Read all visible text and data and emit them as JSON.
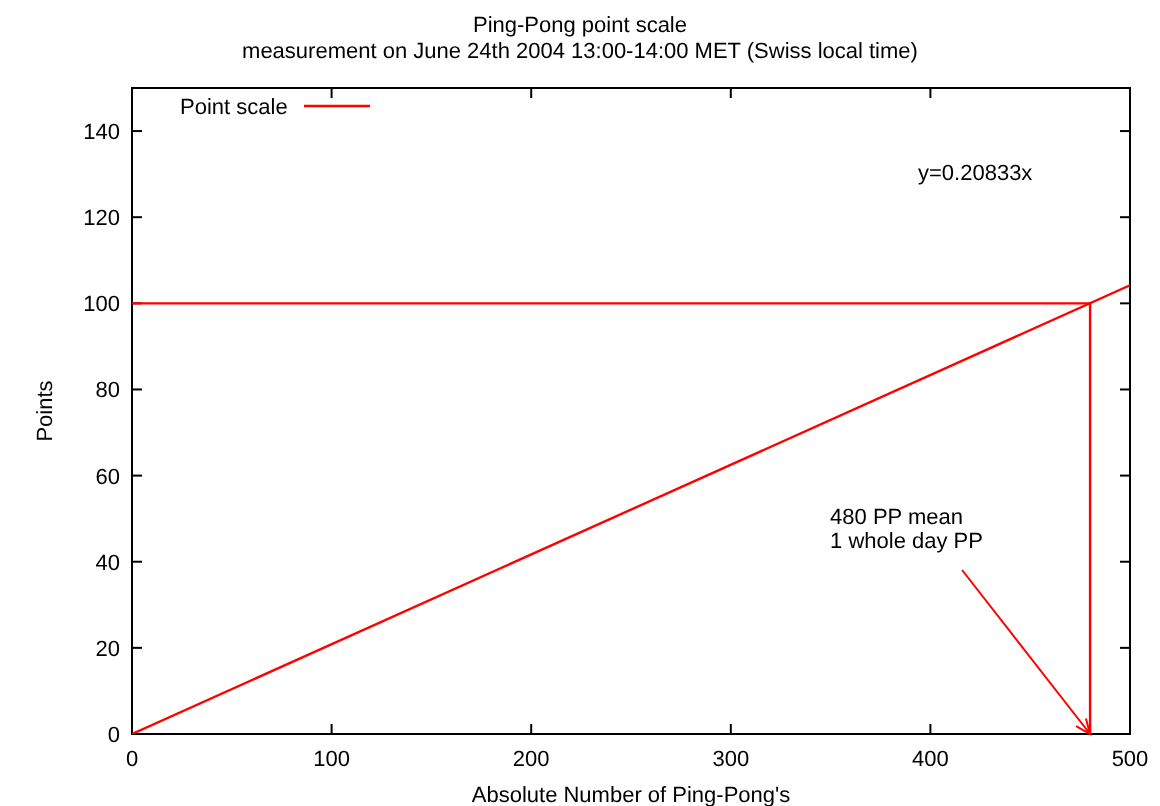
{
  "chart_data": {
    "type": "line",
    "title": "Ping-Pong point scale",
    "subtitle": "measurement on June 24th 2004 13:00-14:00 MET (Swiss local time)",
    "xlabel": "Absolute Number of Ping-Pong's",
    "ylabel": "Points",
    "series": [
      {
        "name": "Point scale",
        "color": "#ff0000",
        "x": [
          0,
          500
        ],
        "values": [
          0,
          104.2
        ]
      },
      {
        "color": "#ff0000",
        "x": [
          0,
          480,
          480
        ],
        "values": [
          100,
          100,
          0
        ]
      }
    ],
    "annotations": [
      "y=0.20833x",
      {
        "text": "480 PP mean\n1 whole day PP",
        "x": 480,
        "y": 0
      }
    ],
    "xlim": [
      0,
      500
    ],
    "xticks": [
      0,
      100,
      200,
      300,
      400,
      500
    ],
    "ylim": [
      0,
      150
    ],
    "yticks": [
      0,
      20,
      40,
      60,
      80,
      100,
      120,
      140
    ],
    "grid": false,
    "legend": "top left",
    "marker": "none",
    "line_style": "solid"
  }
}
